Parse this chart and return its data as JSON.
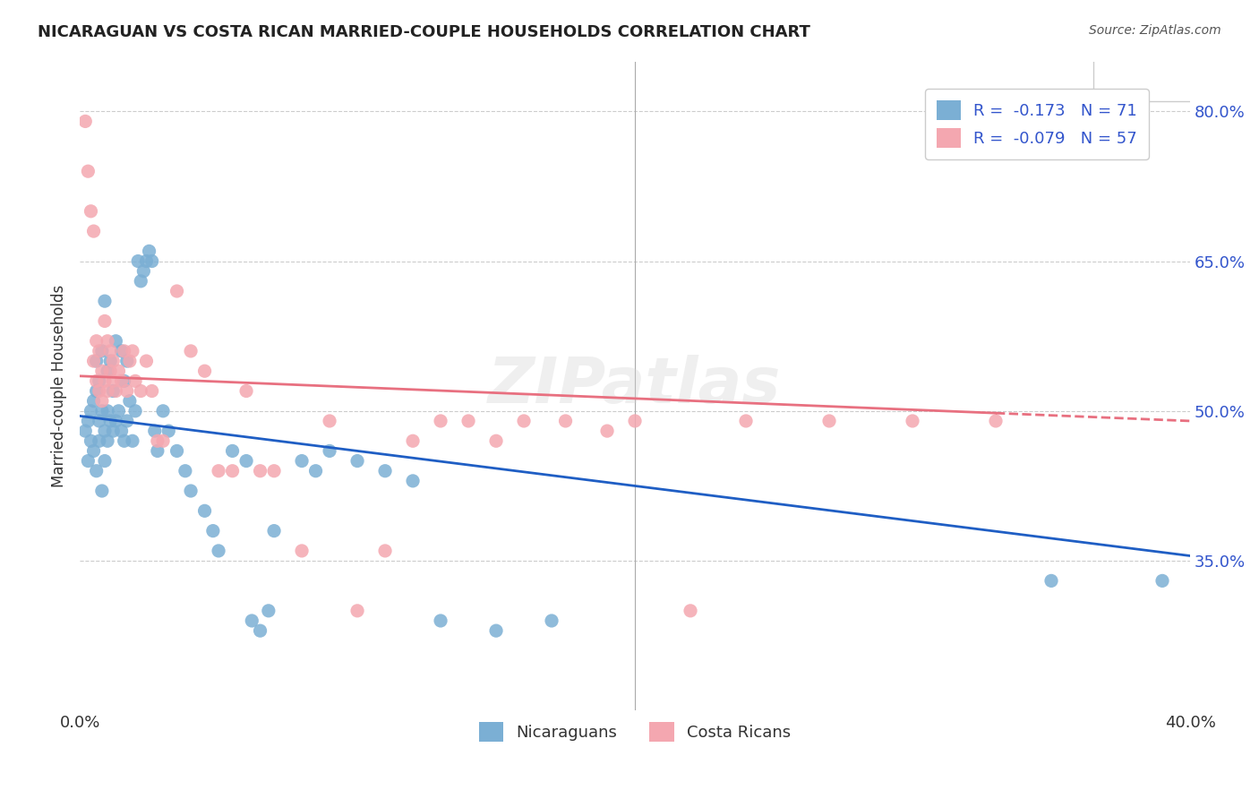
{
  "title": "NICARAGUAN VS COSTA RICAN MARRIED-COUPLE HOUSEHOLDS CORRELATION CHART",
  "source": "Source: ZipAtlas.com",
  "xlabel": "",
  "ylabel": "Married-couple Households",
  "xmin": 0.0,
  "xmax": 0.4,
  "ymin": 0.2,
  "ymax": 0.85,
  "yticks": [
    0.35,
    0.5,
    0.65,
    0.8
  ],
  "ytick_labels": [
    "35.0%",
    "50.0%",
    "65.0%",
    "80.0%"
  ],
  "xticks": [
    0.0,
    0.1,
    0.2,
    0.3,
    0.4
  ],
  "xtick_labels": [
    "0.0%",
    "",
    "",
    "",
    "40.0%"
  ],
  "legend_R_blue": "-0.173",
  "legend_N_blue": "71",
  "legend_R_pink": "-0.079",
  "legend_N_pink": "57",
  "blue_color": "#7BAFD4",
  "pink_color": "#F4A7B0",
  "trendline_blue": "#1F5EC4",
  "trendline_pink": "#E87080",
  "watermark": "ZIPatlas",
  "blue_points_x": [
    0.002,
    0.003,
    0.003,
    0.004,
    0.004,
    0.005,
    0.005,
    0.006,
    0.006,
    0.006,
    0.007,
    0.007,
    0.007,
    0.008,
    0.008,
    0.008,
    0.009,
    0.009,
    0.009,
    0.01,
    0.01,
    0.01,
    0.011,
    0.011,
    0.012,
    0.012,
    0.013,
    0.013,
    0.014,
    0.015,
    0.015,
    0.016,
    0.016,
    0.017,
    0.017,
    0.018,
    0.019,
    0.02,
    0.021,
    0.022,
    0.023,
    0.024,
    0.025,
    0.026,
    0.027,
    0.028,
    0.03,
    0.032,
    0.035,
    0.038,
    0.04,
    0.045,
    0.048,
    0.05,
    0.055,
    0.06,
    0.062,
    0.065,
    0.068,
    0.07,
    0.08,
    0.085,
    0.09,
    0.1,
    0.11,
    0.12,
    0.13,
    0.15,
    0.17,
    0.35,
    0.39
  ],
  "blue_points_y": [
    0.48,
    0.45,
    0.49,
    0.47,
    0.5,
    0.51,
    0.46,
    0.44,
    0.52,
    0.55,
    0.49,
    0.47,
    0.53,
    0.42,
    0.5,
    0.56,
    0.48,
    0.45,
    0.61,
    0.5,
    0.47,
    0.54,
    0.49,
    0.55,
    0.48,
    0.52,
    0.49,
    0.57,
    0.5,
    0.48,
    0.56,
    0.47,
    0.53,
    0.49,
    0.55,
    0.51,
    0.47,
    0.5,
    0.65,
    0.63,
    0.64,
    0.65,
    0.66,
    0.65,
    0.48,
    0.46,
    0.5,
    0.48,
    0.46,
    0.44,
    0.42,
    0.4,
    0.38,
    0.36,
    0.46,
    0.45,
    0.29,
    0.28,
    0.3,
    0.38,
    0.45,
    0.44,
    0.46,
    0.45,
    0.44,
    0.43,
    0.29,
    0.28,
    0.29,
    0.33,
    0.33
  ],
  "pink_points_x": [
    0.002,
    0.003,
    0.004,
    0.005,
    0.005,
    0.006,
    0.006,
    0.007,
    0.007,
    0.008,
    0.008,
    0.009,
    0.009,
    0.01,
    0.01,
    0.011,
    0.011,
    0.012,
    0.012,
    0.013,
    0.014,
    0.015,
    0.016,
    0.017,
    0.018,
    0.019,
    0.02,
    0.022,
    0.024,
    0.026,
    0.028,
    0.03,
    0.035,
    0.04,
    0.045,
    0.05,
    0.055,
    0.06,
    0.065,
    0.07,
    0.08,
    0.09,
    0.1,
    0.11,
    0.12,
    0.13,
    0.14,
    0.15,
    0.16,
    0.175,
    0.19,
    0.2,
    0.22,
    0.24,
    0.27,
    0.3,
    0.33
  ],
  "pink_points_y": [
    0.79,
    0.74,
    0.7,
    0.68,
    0.55,
    0.53,
    0.57,
    0.52,
    0.56,
    0.51,
    0.54,
    0.53,
    0.59,
    0.52,
    0.57,
    0.54,
    0.56,
    0.53,
    0.55,
    0.52,
    0.54,
    0.53,
    0.56,
    0.52,
    0.55,
    0.56,
    0.53,
    0.52,
    0.55,
    0.52,
    0.47,
    0.47,
    0.62,
    0.56,
    0.54,
    0.44,
    0.44,
    0.52,
    0.44,
    0.44,
    0.36,
    0.49,
    0.3,
    0.36,
    0.47,
    0.49,
    0.49,
    0.47,
    0.49,
    0.49,
    0.48,
    0.49,
    0.3,
    0.49,
    0.49,
    0.49,
    0.49
  ]
}
